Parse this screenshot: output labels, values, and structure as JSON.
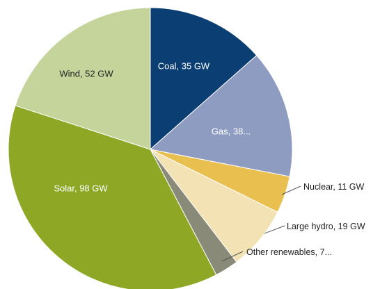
{
  "chart_data": {
    "type": "pie",
    "title": "",
    "legend": "none",
    "unit": "GW",
    "start_angle_deg": 0,
    "direction": "clockwise",
    "slices": [
      {
        "name": "Coal",
        "value": 35,
        "label": "Coal, 35 GW",
        "color": "#0b3f73",
        "label_color": "#ffffff",
        "label_style": "inside"
      },
      {
        "name": "Gas",
        "value": 38,
        "label": "Gas, 38...",
        "color": "#8f9cc2",
        "label_color": "#ffffff",
        "label_style": "inside"
      },
      {
        "name": "Nuclear",
        "value": 11,
        "label": "Nuclear, 11 GW",
        "color": "#e9bf4f",
        "label_color": "#222222",
        "label_style": "callout"
      },
      {
        "name": "Large hydro",
        "value": 19,
        "label": "Large hydro, 19 GW",
        "color": "#f3e3b4",
        "label_color": "#222222",
        "label_style": "callout"
      },
      {
        "name": "Other renewables",
        "value": 7,
        "label": "Other renewables, 7...",
        "color": "#8a8a78",
        "label_color": "#222222",
        "label_style": "callout"
      },
      {
        "name": "Solar",
        "value": 98,
        "label": "Solar, 98 GW",
        "color": "#8ea825",
        "label_color": "#ffffff",
        "label_style": "inside"
      },
      {
        "name": "Wind",
        "value": 52,
        "label": "Wind, 52 GW",
        "color": "#c5d49a",
        "label_color": "#222222",
        "label_style": "inside"
      }
    ]
  }
}
